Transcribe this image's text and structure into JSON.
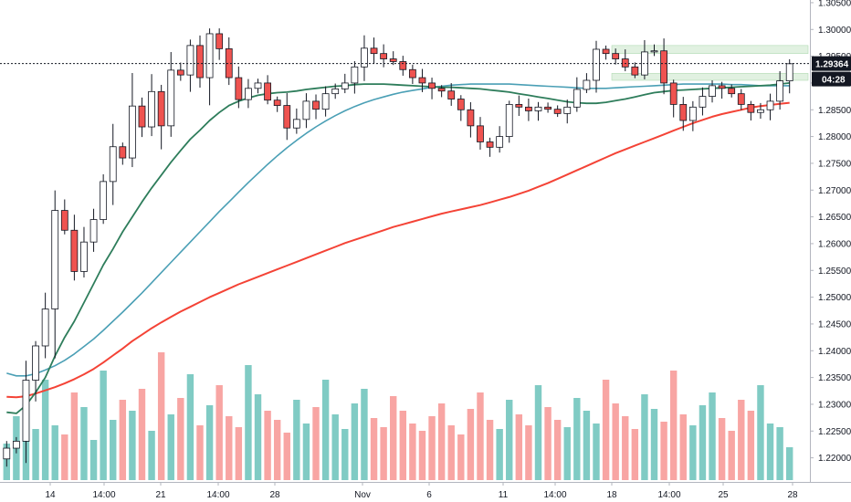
{
  "chart_data": {
    "type": "candlestick",
    "ylim": [
      1.2155,
      1.3055
    ],
    "grid": false,
    "legend": "none",
    "y_ticks": [
      "1.30500",
      "1.30000",
      "1.29500",
      "1.29000",
      "1.28500",
      "1.28000",
      "1.27500",
      "1.27000",
      "1.26500",
      "1.26000",
      "1.25500",
      "1.25000",
      "1.24500",
      "1.24000",
      "1.23500",
      "1.23000",
      "1.22500",
      "1.22000"
    ],
    "x_ticks": [
      "14",
      "14:00",
      "21",
      "14:00",
      "28",
      "Nov",
      "6",
      "11",
      "14:00",
      "18",
      "14:00",
      "25",
      "28"
    ],
    "current_price": "1.29364",
    "countdown": "04:28",
    "colors": {
      "up": "#ffffff",
      "down": "#ef5350",
      "wick": "#131722",
      "vol_up": "#80cbc4",
      "vol_down": "#f8a5a3",
      "ma_fast": "#2e7d5b",
      "ma_mid": "#4a9fb5",
      "ma_slow": "#f44336",
      "zone": "#c8e6c9"
    },
    "zones": [
      {
        "y1": 1.297,
        "y2": 1.2955
      },
      {
        "y1": 1.2918,
        "y2": 1.2905
      }
    ],
    "closes": [
      1.2218,
      1.2231,
      1.2345,
      1.2409,
      1.2478,
      1.2662,
      1.2625,
      1.2548,
      1.2603,
      1.2645,
      1.2716,
      1.2781,
      1.276,
      1.2857,
      1.2818,
      1.2884,
      1.282,
      1.2924,
      1.2915,
      1.297,
      1.291,
      1.2992,
      1.2964,
      1.291,
      1.2869,
      1.289,
      1.29,
      1.2868,
      1.2858,
      1.2816,
      1.2832,
      1.2866,
      1.2851,
      1.288,
      1.2889,
      1.29,
      1.293,
      1.2965,
      1.2955,
      1.2945,
      1.294,
      1.2925,
      1.291,
      1.29,
      1.289,
      1.2885,
      1.287,
      1.285,
      1.282,
      1.279,
      1.278,
      1.28,
      1.286,
      1.2855,
      1.2848,
      1.2855,
      1.2851,
      1.2843,
      1.2855,
      1.2888,
      1.2905,
      1.2963,
      1.2955,
      1.2945,
      1.293,
      1.2915,
      1.2958,
      1.296,
      1.29,
      1.286,
      1.283,
      1.2855,
      1.2875,
      1.2895,
      1.289,
      1.288,
      1.286,
      1.2845,
      1.285,
      1.2866,
      1.2904,
      1.2936
    ],
    "ema_fast": [
      1.2285,
      1.2283,
      1.2298,
      1.2322,
      1.235,
      1.239,
      1.2425,
      1.2455,
      1.249,
      1.2525,
      1.256,
      1.259,
      1.2622,
      1.265,
      1.2678,
      1.2704,
      1.2728,
      1.2752,
      1.2774,
      1.2795,
      1.2812,
      1.283,
      1.2845,
      1.2858,
      1.2866,
      1.2872,
      1.2877,
      1.288,
      1.2882,
      1.2883,
      1.2885,
      1.2888,
      1.289,
      1.2892,
      1.2894,
      1.2895,
      1.2897,
      1.2898,
      1.2898,
      1.2898,
      1.2897,
      1.2896,
      1.2895,
      1.2894,
      1.2893,
      1.2892,
      1.2892,
      1.2891,
      1.289,
      1.2889,
      1.2887,
      1.2885,
      1.2883,
      1.288,
      1.2877,
      1.2874,
      1.2871,
      1.2868,
      1.2865,
      1.2863,
      1.2862,
      1.2862,
      1.2864,
      1.2867,
      1.287,
      1.2874,
      1.2878,
      1.2882,
      1.2884,
      1.2886,
      1.2887,
      1.2888,
      1.2889,
      1.289,
      1.2891,
      1.2892,
      1.2893,
      1.2894,
      1.2895,
      1.2896,
      1.2898,
      1.29
    ],
    "ema_mid": [
      1.2358,
      1.2353,
      1.2353,
      1.2357,
      1.2364,
      1.2372,
      1.2382,
      1.2394,
      1.2408,
      1.2422,
      1.2438,
      1.2455,
      1.2472,
      1.249,
      1.2508,
      1.2527,
      1.2546,
      1.2565,
      1.2584,
      1.2603,
      1.2622,
      1.2641,
      1.266,
      1.2678,
      1.2696,
      1.2714,
      1.2731,
      1.2748,
      1.2764,
      1.2779,
      1.2793,
      1.2806,
      1.2818,
      1.2829,
      1.2839,
      1.2848,
      1.2856,
      1.2863,
      1.2869,
      1.2874,
      1.2879,
      1.2883,
      1.2886,
      1.2889,
      1.2892,
      1.2894,
      1.2896,
      1.2897,
      1.2898,
      1.2898,
      1.2898,
      1.2898,
      1.2898,
      1.2897,
      1.2896,
      1.2895,
      1.2894,
      1.2893,
      1.2892,
      1.2891,
      1.289,
      1.289,
      1.289,
      1.2891,
      1.2892,
      1.2893,
      1.2894,
      1.2895,
      1.2896,
      1.2897,
      1.2898,
      1.2898,
      1.2898,
      1.2898,
      1.2898,
      1.2897,
      1.2897,
      1.2896,
      1.2895,
      1.2895,
      1.2895,
      1.2895
    ],
    "ema_slow": [
      1.2314,
      1.2313,
      1.2315,
      1.232,
      1.2326,
      1.2332,
      1.2339,
      1.2347,
      1.2356,
      1.2366,
      1.2378,
      1.2391,
      1.2404,
      1.2418,
      1.243,
      1.2442,
      1.2453,
      1.2463,
      1.2473,
      1.2482,
      1.2491,
      1.25,
      1.2508,
      1.2516,
      1.2524,
      1.2531,
      1.2538,
      1.2545,
      1.2552,
      1.2559,
      1.2566,
      1.2573,
      1.258,
      1.2587,
      1.2594,
      1.2601,
      1.2607,
      1.2613,
      1.2619,
      1.2625,
      1.2631,
      1.2636,
      1.2641,
      1.2646,
      1.2651,
      1.2656,
      1.266,
      1.2664,
      1.2668,
      1.2672,
      1.2677,
      1.2682,
      1.2687,
      1.2693,
      1.2699,
      1.2706,
      1.2713,
      1.2721,
      1.2729,
      1.2737,
      1.2745,
      1.2753,
      1.2761,
      1.2769,
      1.2776,
      1.2783,
      1.279,
      1.2797,
      1.2804,
      1.2811,
      1.2818,
      1.2825,
      1.2831,
      1.2837,
      1.2842,
      1.2846,
      1.285,
      1.2854,
      1.2857,
      1.2859,
      1.2861,
      1.2863
    ],
    "volume": [
      20,
      35,
      42,
      28,
      55,
      30,
      25,
      48,
      40,
      22,
      60,
      33,
      44,
      38,
      50,
      27,
      70,
      36,
      45,
      58,
      30,
      41,
      52,
      35,
      29,
      63,
      47,
      38,
      33,
      26,
      44,
      31,
      40,
      55,
      36,
      28,
      42,
      50,
      34,
      29,
      46,
      38,
      31,
      27,
      35,
      42,
      30,
      25,
      39,
      48,
      33,
      28,
      44,
      36,
      30,
      52,
      40,
      33,
      29,
      45,
      38,
      31,
      55,
      42,
      35,
      28,
      47,
      39,
      32,
      60,
      36,
      30,
      41,
      48,
      34,
      27,
      44,
      38,
      52,
      31,
      29,
      18
    ]
  }
}
